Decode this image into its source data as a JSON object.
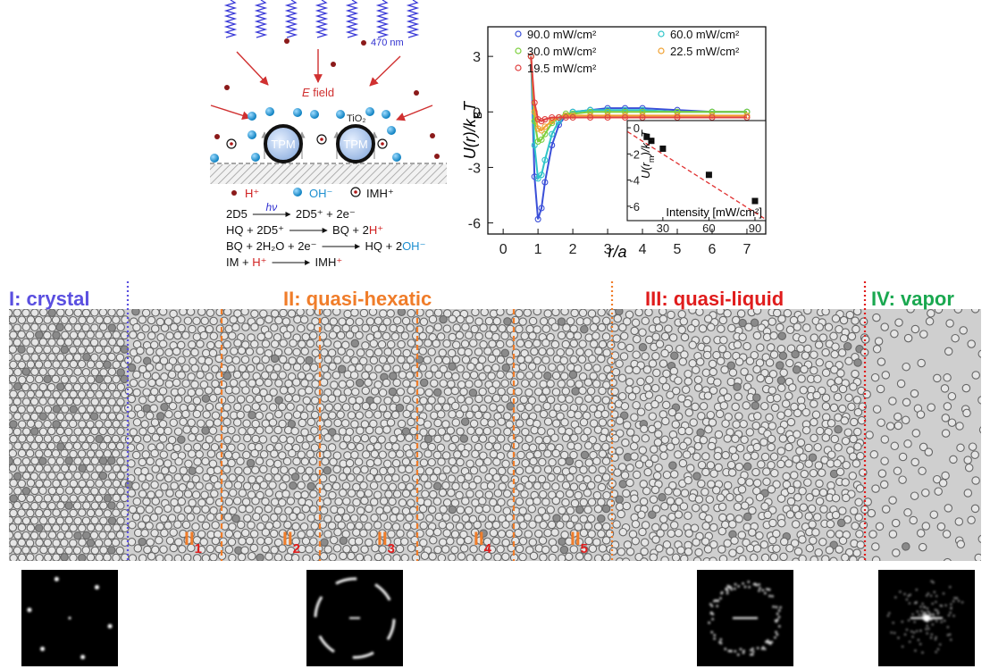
{
  "schematic": {
    "wavelength": "470 nm",
    "field": {
      "symbol": "E",
      "text": " field"
    },
    "particle": "TPM",
    "coating": "TiO₂",
    "legend": [
      "H⁺",
      "OH⁻",
      "IMH⁺"
    ],
    "reactions": [
      {
        "left": [
          {
            "text": "2D5"
          }
        ],
        "over": "hν",
        "right": [
          {
            "text": "2D5⁺ + 2e⁻"
          }
        ]
      },
      {
        "left": [
          {
            "text": "HQ + 2D5⁺"
          }
        ],
        "right": [
          {
            "text": "BQ + 2"
          },
          {
            "text": "H⁺",
            "color": "#d02020"
          }
        ]
      },
      {
        "left": [
          {
            "text": "BQ + 2H₂O + 2e⁻"
          }
        ],
        "right": [
          {
            "text": "HQ + 2"
          },
          {
            "text": "OH⁻",
            "color": "#1e8fd0"
          }
        ]
      },
      {
        "left": [
          {
            "text": "IM + "
          },
          {
            "text": "H⁺",
            "color": "#d02020"
          }
        ],
        "right": [
          {
            "text": "IMH"
          },
          {
            "text": "⁺",
            "color": "#d02020"
          }
        ]
      }
    ]
  },
  "chart_data": [
    {
      "type": "line",
      "x_label": "r/a",
      "y_label": {
        "text": "U(r)/k",
        "sub": "B",
        "after": "T"
      },
      "x": [
        0.8,
        0.9,
        1.0,
        1.1,
        1.2,
        1.4,
        1.6,
        1.8,
        2.0,
        2.5,
        3.0,
        3.5,
        4.0,
        5.0,
        6.0,
        7.0
      ],
      "series": [
        {
          "name": "90.0 mW/cm²",
          "color": "#3a4fd8",
          "values": [
            3,
            -3.5,
            -5.8,
            -5.2,
            -3.8,
            -1.8,
            -0.7,
            -0.2,
            0,
            0.1,
            0.2,
            0.2,
            0.2,
            0.1,
            0,
            0
          ]
        },
        {
          "name": "60.0 mW/cm²",
          "color": "#2ec4c8",
          "values": [
            3,
            -1.8,
            -3.6,
            -3.4,
            -2.6,
            -1.2,
            -0.5,
            -0.2,
            0,
            0.1,
            0.1,
            0.1,
            0.1,
            0,
            0,
            0
          ]
        },
        {
          "name": "30.0 mW/cm²",
          "color": "#7ccf3c",
          "values": [
            3,
            -0.5,
            -1.6,
            -1.5,
            -1.2,
            -0.6,
            -0.3,
            -0.1,
            -0.1,
            0,
            0,
            0,
            0,
            0,
            0,
            0
          ]
        },
        {
          "name": "22.5 mW/cm²",
          "color": "#f0a030",
          "values": [
            3,
            0,
            -0.9,
            -1.0,
            -0.8,
            -0.5,
            -0.3,
            -0.2,
            -0.2,
            -0.2,
            -0.2,
            -0.2,
            -0.2,
            -0.2,
            -0.2,
            -0.2
          ]
        },
        {
          "name": "19.5 mW/cm²",
          "color": "#e04040",
          "values": [
            3,
            0.5,
            -0.4,
            -0.5,
            -0.4,
            -0.3,
            -0.3,
            -0.3,
            -0.3,
            -0.3,
            -0.3,
            -0.3,
            -0.3,
            -0.3,
            -0.3,
            -0.3
          ]
        }
      ],
      "xlim": [
        -0.44,
        7.54
      ],
      "ylim": [
        -6.6,
        4.6
      ],
      "xticks": [
        0,
        1,
        2,
        3,
        4,
        5,
        6,
        7
      ],
      "yticks": [
        3,
        0,
        -3,
        -6
      ]
    },
    {
      "type": "scatter",
      "x_label": "Intensity [mW/cm²]",
      "y_label": {
        "text": "U(r",
        "sub": "m",
        "after": ")/k",
        "sub2": "B",
        "after2": "T"
      },
      "x": [
        19.5,
        22.5,
        30,
        60,
        90
      ],
      "values": [
        -0.7,
        -1.0,
        -1.6,
        -3.6,
        -5.6
      ],
      "color": "#111111",
      "fit": {
        "x": [
          7,
          97
        ],
        "values": [
          -0.3,
          -7.0
        ],
        "color": "#e03030"
      },
      "xlim": [
        6.8,
        97
      ],
      "ylim": [
        -7.1,
        0.55
      ],
      "xticks": [
        30,
        60,
        90
      ],
      "yticks": [
        0,
        -2,
        -4,
        -6
      ]
    }
  ],
  "phases": {
    "labels": [
      {
        "text": "I: crystal",
        "color": "#5a4fe0"
      },
      {
        "text": "II: quasi-hexatic",
        "color": "#f07d2a"
      },
      {
        "text": "III: quasi-liquid",
        "color": "#e01c1c"
      },
      {
        "text": "IV: vapor",
        "color": "#1aa850"
      }
    ],
    "sublabels": [
      {
        "base": "II",
        "sub": "1"
      },
      {
        "base": "II",
        "sub": "2"
      },
      {
        "base": "II",
        "sub": "3"
      },
      {
        "base": "II",
        "sub": "4"
      },
      {
        "base": "II",
        "sub": "5"
      }
    ]
  }
}
